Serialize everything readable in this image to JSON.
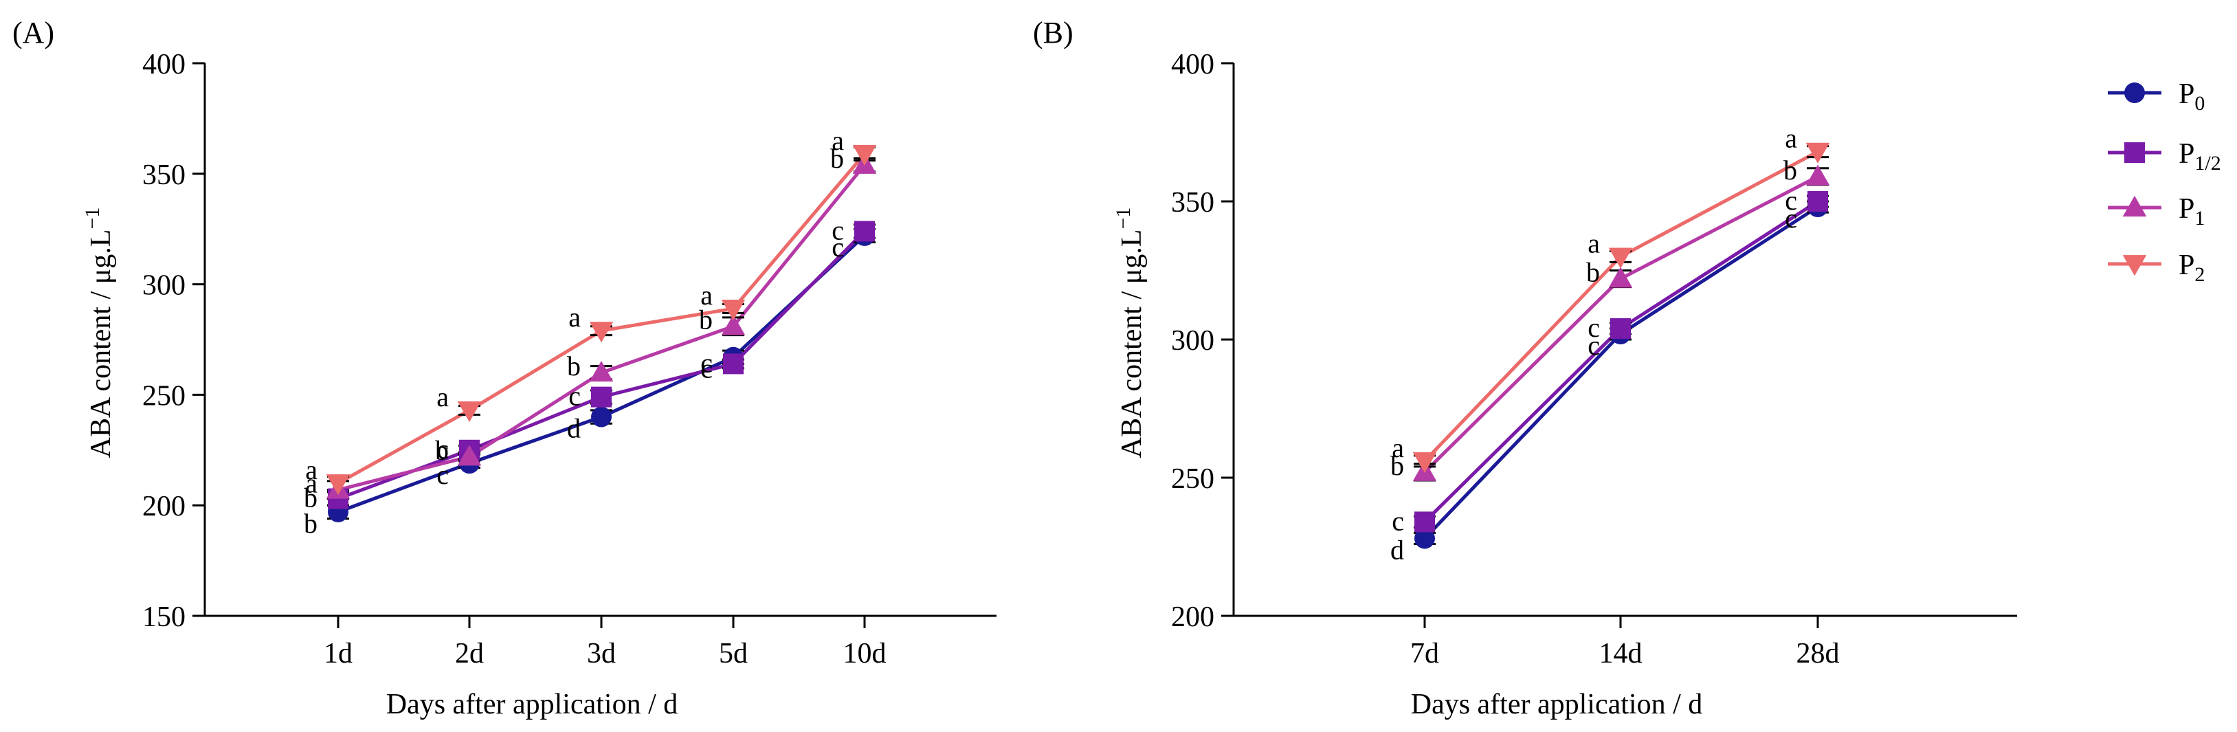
{
  "colors": {
    "P0": "#1a1a96",
    "P12": "#7a1aa8",
    "P1": "#b63aa6",
    "P2": "#ec6a6a"
  },
  "legend": [
    {
      "key": "P0",
      "base": "P",
      "sub": "0",
      "marker": "circle"
    },
    {
      "key": "P12",
      "base": "P",
      "sub": "1/2",
      "marker": "square"
    },
    {
      "key": "P1",
      "base": "P",
      "sub": "1",
      "marker": "triangle-up"
    },
    {
      "key": "P2",
      "base": "P",
      "sub": "2",
      "marker": "triangle-down"
    }
  ],
  "chart_data": [
    {
      "panel_label": "(A)",
      "type": "line",
      "categories": [
        "1d",
        "2d",
        "3d",
        "5d",
        "10d"
      ],
      "xlabel": "Days after application / d",
      "ylabel_main": "ABA content / μg.L",
      "ylabel_sup": "−1",
      "ylim": [
        150,
        400
      ],
      "yticks": [
        150,
        200,
        250,
        300,
        350,
        400
      ],
      "series": [
        {
          "key": "P0",
          "values": [
            197,
            219,
            240,
            267,
            322
          ],
          "errors": [
            3,
            2,
            3,
            3,
            3
          ]
        },
        {
          "key": "P12",
          "values": [
            203,
            225,
            249,
            264,
            324
          ],
          "errors": [
            3,
            2,
            3,
            2,
            3
          ]
        },
        {
          "key": "P1",
          "values": [
            207,
            222,
            260,
            281,
            354
          ],
          "errors": [
            4,
            2,
            3,
            4,
            3
          ]
        },
        {
          "key": "P2",
          "values": [
            210,
            243,
            279,
            289,
            359
          ],
          "errors": [
            3,
            2,
            2,
            2,
            3
          ]
        }
      ],
      "significance": [
        [
          "b",
          "b",
          "a",
          "a"
        ],
        [
          "c",
          "c",
          "b",
          "a"
        ],
        [
          "d",
          "c",
          "b",
          "a"
        ],
        [
          "c",
          "c",
          "b",
          "a"
        ],
        [
          "c",
          "c",
          "b",
          "a"
        ]
      ]
    },
    {
      "panel_label": "(B)",
      "type": "line",
      "categories": [
        "7d",
        "14d",
        "28d"
      ],
      "xlabel": "Days after application / d",
      "ylabel_main": "ABA content / μg.L",
      "ylabel_sup": "−1",
      "ylim": [
        200,
        400
      ],
      "yticks": [
        200,
        250,
        300,
        350,
        400
      ],
      "series": [
        {
          "key": "P0",
          "values": [
            228,
            302,
            348
          ],
          "errors": [
            2,
            2,
            2
          ]
        },
        {
          "key": "P12",
          "values": [
            234,
            304,
            350
          ],
          "errors": [
            2,
            2,
            2
          ]
        },
        {
          "key": "P1",
          "values": [
            252,
            322,
            359
          ],
          "errors": [
            3,
            3,
            3
          ]
        },
        {
          "key": "P2",
          "values": [
            256,
            330,
            368
          ],
          "errors": [
            2,
            2,
            2
          ]
        }
      ],
      "significance": [
        [
          "d",
          "c",
          "b",
          "a"
        ],
        [
          "c",
          "c",
          "b",
          "a"
        ],
        [
          "c",
          "c",
          "b",
          "a"
        ]
      ]
    }
  ]
}
